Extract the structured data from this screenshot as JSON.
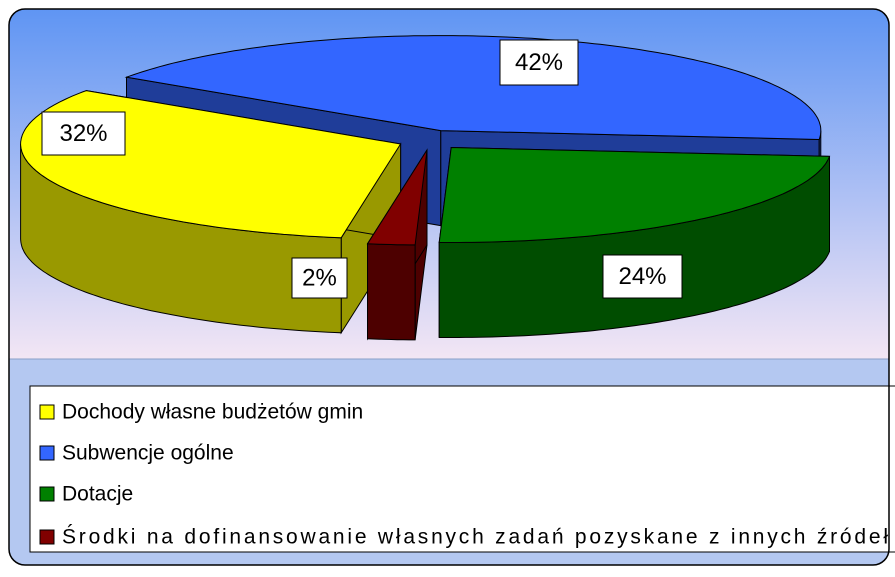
{
  "chart_data": {
    "type": "pie",
    "categories": [
      "Dochody własne budżetów gmin",
      "Subwencje ogólne",
      "Dotacje",
      "Środki na dofinansowanie własnych zadań pozyskane z innych źródeł"
    ],
    "values": [
      32,
      42,
      24,
      2
    ],
    "value_labels": [
      "32%",
      "42%",
      "24%",
      "2%"
    ],
    "colors": [
      "#ffff00",
      "#3366ff",
      "#008000",
      "#800000"
    ]
  }
}
